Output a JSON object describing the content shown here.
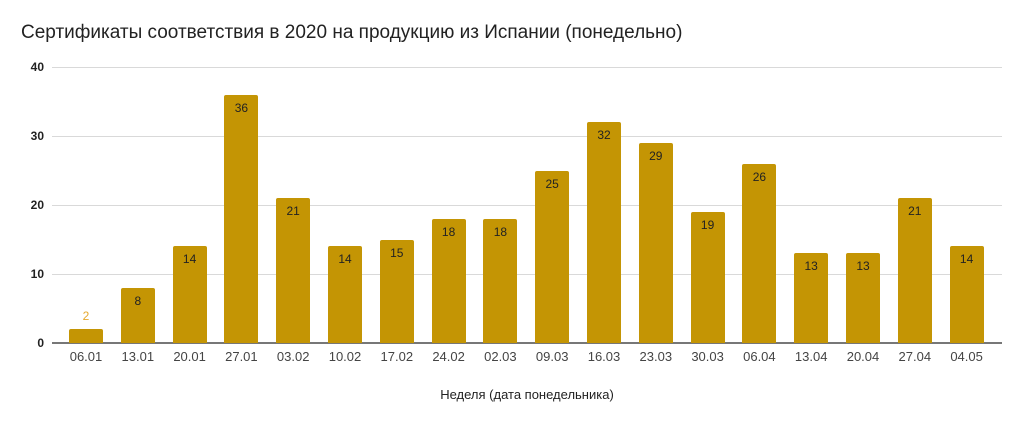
{
  "chart_data": {
    "type": "bar",
    "title": "Сертификаты соответствия в 2020 на продукцию из Испании (понедельно)",
    "xlabel": "Неделя (дата понедельника)",
    "ylabel": "",
    "ylim": [
      0,
      40
    ],
    "yticks": [
      0,
      10,
      20,
      30,
      40
    ],
    "grid": true,
    "legend": null,
    "bar_color": "#c49504",
    "categories": [
      "06.01",
      "13.01",
      "20.01",
      "27.01",
      "03.02",
      "10.02",
      "17.02",
      "24.02",
      "02.03",
      "09.03",
      "16.03",
      "23.03",
      "30.03",
      "06.04",
      "13.04",
      "20.04",
      "27.04",
      "04.05"
    ],
    "values": [
      2,
      8,
      14,
      36,
      21,
      14,
      15,
      18,
      18,
      25,
      32,
      29,
      19,
      26,
      13,
      13,
      21,
      14
    ],
    "data_labels": true
  }
}
